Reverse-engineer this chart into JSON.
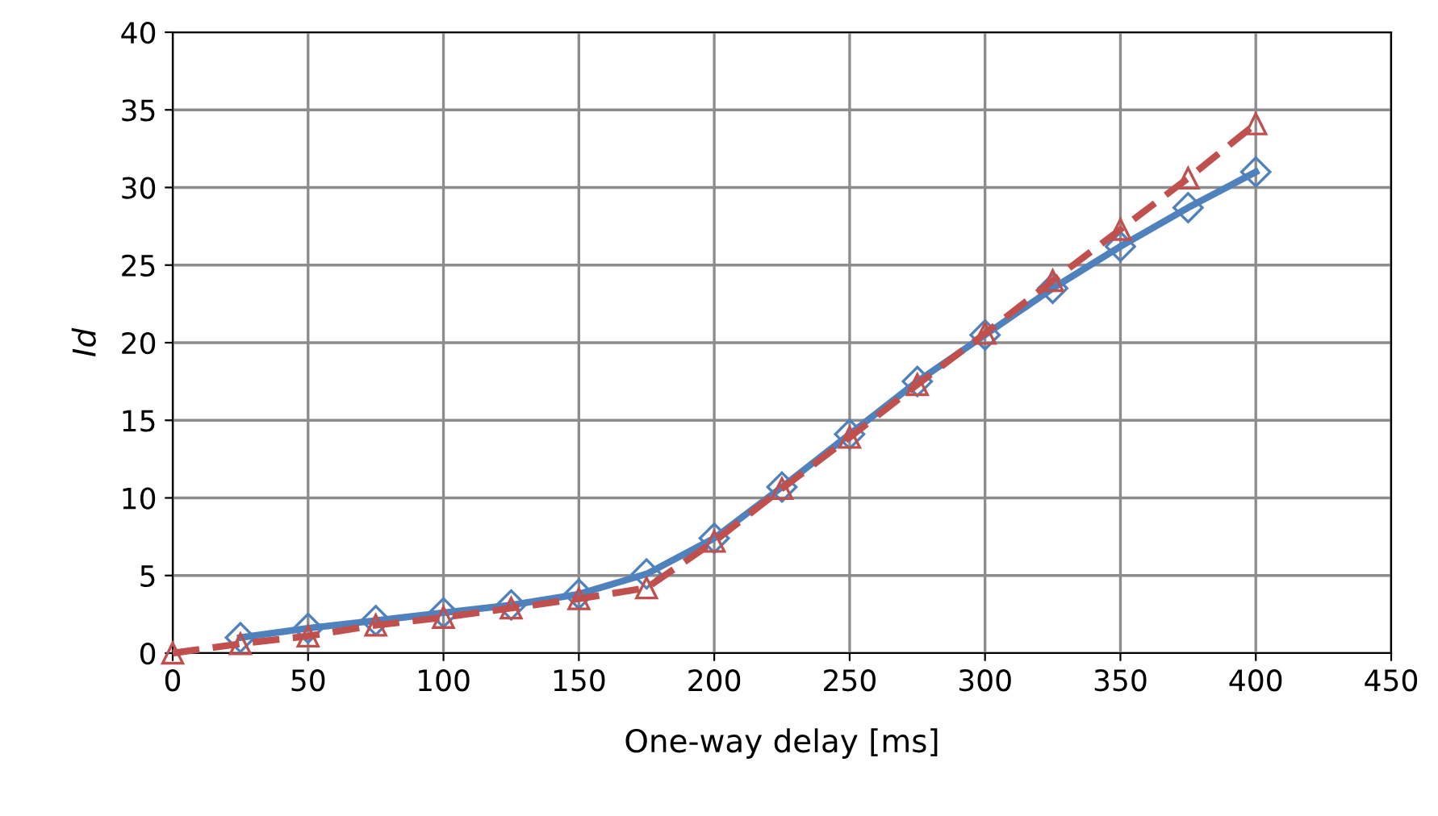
{
  "chart_data": {
    "type": "line",
    "xlabel": "One-way delay [ms]",
    "ylabel": "Id",
    "xlim": [
      0,
      450
    ],
    "xticks": [
      0,
      50,
      100,
      150,
      200,
      250,
      300,
      350,
      400,
      450
    ],
    "ylim": [
      0,
      40
    ],
    "yticks": [
      0,
      5,
      10,
      15,
      20,
      25,
      30,
      35,
      40
    ],
    "grid": true,
    "series": [
      {
        "color": "#4f81bd",
        "marker": "diamond",
        "line_style": "solid",
        "x": [
          25,
          50,
          75,
          100,
          125,
          150,
          175,
          200,
          225,
          250,
          275,
          300,
          325,
          350,
          375,
          400
        ],
        "values": [
          1.0,
          1.6,
          2.1,
          2.6,
          3.1,
          3.8,
          5.1,
          7.4,
          10.7,
          14.1,
          17.5,
          20.5,
          23.5,
          26.2,
          28.7,
          31.0
        ]
      },
      {
        "color": "#c0504d",
        "marker": "triangle",
        "line_style": "dashed",
        "x": [
          0,
          25,
          50,
          75,
          100,
          125,
          150,
          175,
          200,
          225,
          250,
          275,
          300,
          325,
          350,
          375,
          400
        ],
        "values": [
          0,
          0.6,
          1.1,
          1.8,
          2.3,
          2.9,
          3.5,
          4.2,
          7.2,
          10.6,
          13.9,
          17.3,
          20.6,
          24.0,
          27.3,
          30.6,
          34.1
        ]
      }
    ]
  }
}
